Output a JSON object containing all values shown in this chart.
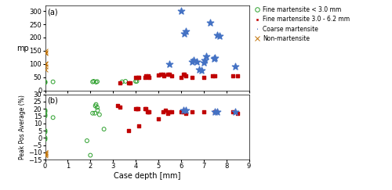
{
  "legend_labels": [
    "Fine martensite < 3.0 mm",
    "Fine martensite 3.0 - 6.2 mm",
    "Coarse martensite",
    "Non-martensite"
  ],
  "legend_colors": [
    "#2ca02c",
    "#c00000",
    "#4472c4",
    "#c07000"
  ],
  "legend_markers": [
    "o",
    "s",
    "*",
    "x"
  ],
  "fine_mart_lt3_depth_a": [
    0.0,
    0.0,
    0.35,
    2.1,
    2.15,
    2.25,
    2.3,
    3.4,
    3.55,
    4.0,
    4.05
  ],
  "fine_mart_lt3_mp": [
    30,
    33,
    33,
    33,
    35,
    32,
    34,
    33,
    35,
    35,
    35
  ],
  "fine_mart_36_depth_a": [
    3.3,
    3.7,
    3.75,
    4.0,
    4.1,
    4.15,
    4.4,
    4.45,
    4.5,
    4.55,
    4.6,
    5.0,
    5.1,
    5.2,
    5.25,
    5.4,
    5.5,
    5.6,
    6.0,
    6.1,
    6.15,
    6.2,
    6.5,
    7.0,
    7.4,
    7.5,
    8.3,
    8.5
  ],
  "fine_mart_36_mp": [
    30,
    30,
    30,
    50,
    50,
    50,
    50,
    55,
    52,
    55,
    50,
    58,
    60,
    60,
    55,
    60,
    60,
    55,
    50,
    60,
    60,
    55,
    50,
    50,
    55,
    55,
    55,
    55
  ],
  "coarse_mart_depth_a": [
    5.5,
    6.0,
    6.15,
    6.2,
    6.5,
    6.55,
    6.7,
    6.8,
    6.9,
    7.0,
    7.05,
    7.1,
    7.3,
    7.45,
    7.5,
    7.6,
    7.7,
    8.4
  ],
  "coarse_mart_mp": [
    100,
    300,
    215,
    225,
    108,
    115,
    110,
    80,
    75,
    105,
    115,
    130,
    255,
    120,
    122,
    210,
    205,
    90
  ],
  "non_mart_depth_a": [
    0.0,
    0.0,
    0.0,
    0.0,
    0.0,
    0.0,
    0.0
  ],
  "non_mart_mp": [
    80,
    90,
    100,
    102,
    140,
    145,
    150
  ],
  "fine_mart_lt3_depth_b": [
    0.0,
    0.0,
    0.0,
    0.0,
    0.0,
    0.0,
    0.0,
    0.0,
    0.35,
    1.85,
    2.0,
    2.1,
    2.2,
    2.22,
    2.25,
    2.3,
    2.32,
    2.4,
    2.6
  ],
  "fine_mart_lt3_ppb": [
    19,
    18,
    16,
    15,
    5,
    4,
    0,
    -1,
    14,
    -2,
    -12,
    17,
    17,
    22,
    23,
    21,
    19,
    16,
    6
  ],
  "fine_mart_36_depth_b": [
    3.2,
    3.3,
    3.7,
    4.0,
    4.05,
    4.1,
    4.15,
    4.4,
    4.45,
    4.5,
    4.55,
    4.6,
    5.0,
    5.2,
    5.3,
    5.4,
    5.5,
    5.6,
    6.0,
    6.1,
    6.15,
    6.2,
    6.5,
    7.0,
    7.5,
    7.55,
    8.3,
    8.5
  ],
  "fine_mart_36_ppb": [
    22,
    21,
    5,
    20,
    20,
    20,
    8,
    20,
    20,
    18,
    18,
    18,
    13,
    18,
    19,
    17,
    18,
    18,
    18,
    18,
    19,
    17,
    18,
    18,
    18,
    18,
    18,
    17
  ],
  "coarse_mart_depth_b": [
    6.1,
    6.2,
    7.5,
    7.6,
    8.4
  ],
  "coarse_mart_ppb": [
    19,
    19,
    18,
    18,
    18
  ],
  "non_mart_depth_b": [
    0.0,
    0.0,
    0.0,
    0.0,
    0.0
  ],
  "non_mart_ppb": [
    -10,
    -10,
    -11,
    -11,
    -12
  ],
  "xlim": [
    0,
    9
  ],
  "ylim_a": [
    0,
    320
  ],
  "ylim_b": [
    -15,
    30
  ],
  "yticks_a": [
    0,
    50,
    100,
    150,
    200,
    250,
    300
  ],
  "yticks_b": [
    -15,
    -10,
    -5,
    0,
    5,
    10,
    15,
    20,
    25,
    30
  ],
  "xticks": [
    0,
    1,
    2,
    3,
    4,
    5,
    6,
    7,
    8,
    9
  ],
  "xlabel": "Case depth [mm]",
  "ylabel_a": "mp",
  "ylabel_b": "Peak Pos Average (%)",
  "bg_color": "#ffffff"
}
